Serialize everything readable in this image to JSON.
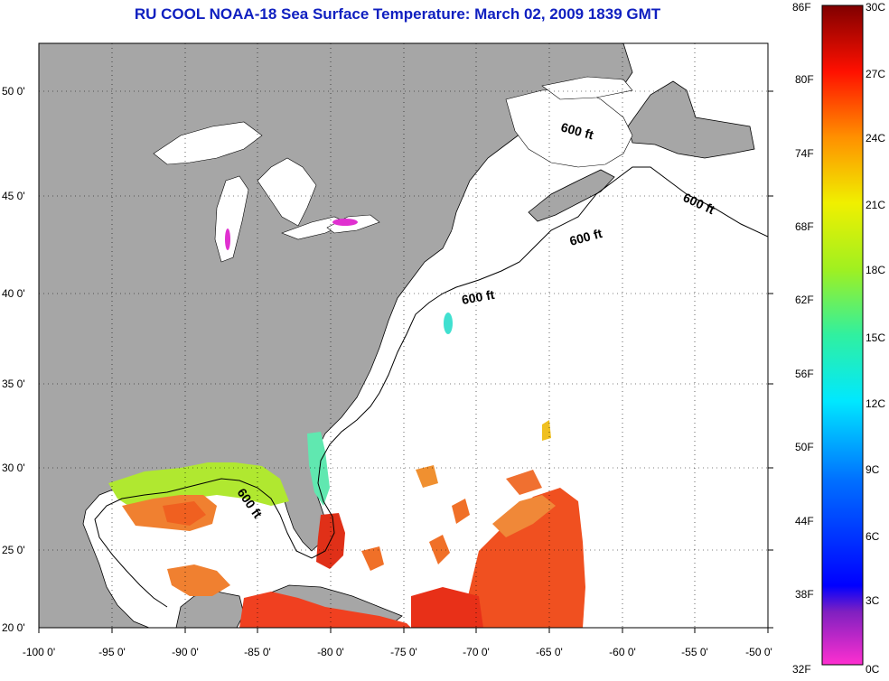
{
  "title": "RU COOL  NOAA-18  Sea Surface Temperature:  March 02, 2009 1839 GMT",
  "map": {
    "lon_ticks": [
      "-100 0'",
      "-95 0'",
      "-90 0'",
      "-85 0'",
      "-80 0'",
      "-75 0'",
      "-70 0'",
      "-65 0'",
      "-60 0'",
      "-55 0'",
      "-50 0'"
    ],
    "lat_ticks": [
      "50 0'",
      "45 0'",
      "40 0'",
      "35 0'",
      "30 0'",
      "25 0'",
      "20 0'"
    ],
    "depth_contour_label": "600 ft",
    "colors": {
      "land": "#a6a6a6",
      "water_no_data": "#ffffff",
      "title": "#1020c0"
    }
  },
  "colorbar": {
    "fahrenheit": [
      "86F",
      "80F",
      "74F",
      "68F",
      "62F",
      "56F",
      "50F",
      "44F",
      "38F",
      "32F"
    ],
    "celsius": [
      "30C",
      "27C",
      "24C",
      "21C",
      "18C",
      "15C",
      "12C",
      "9C",
      "6C",
      "3C",
      "0C"
    ],
    "range_f": [
      32,
      86
    ],
    "range_c": [
      0,
      30
    ]
  }
}
